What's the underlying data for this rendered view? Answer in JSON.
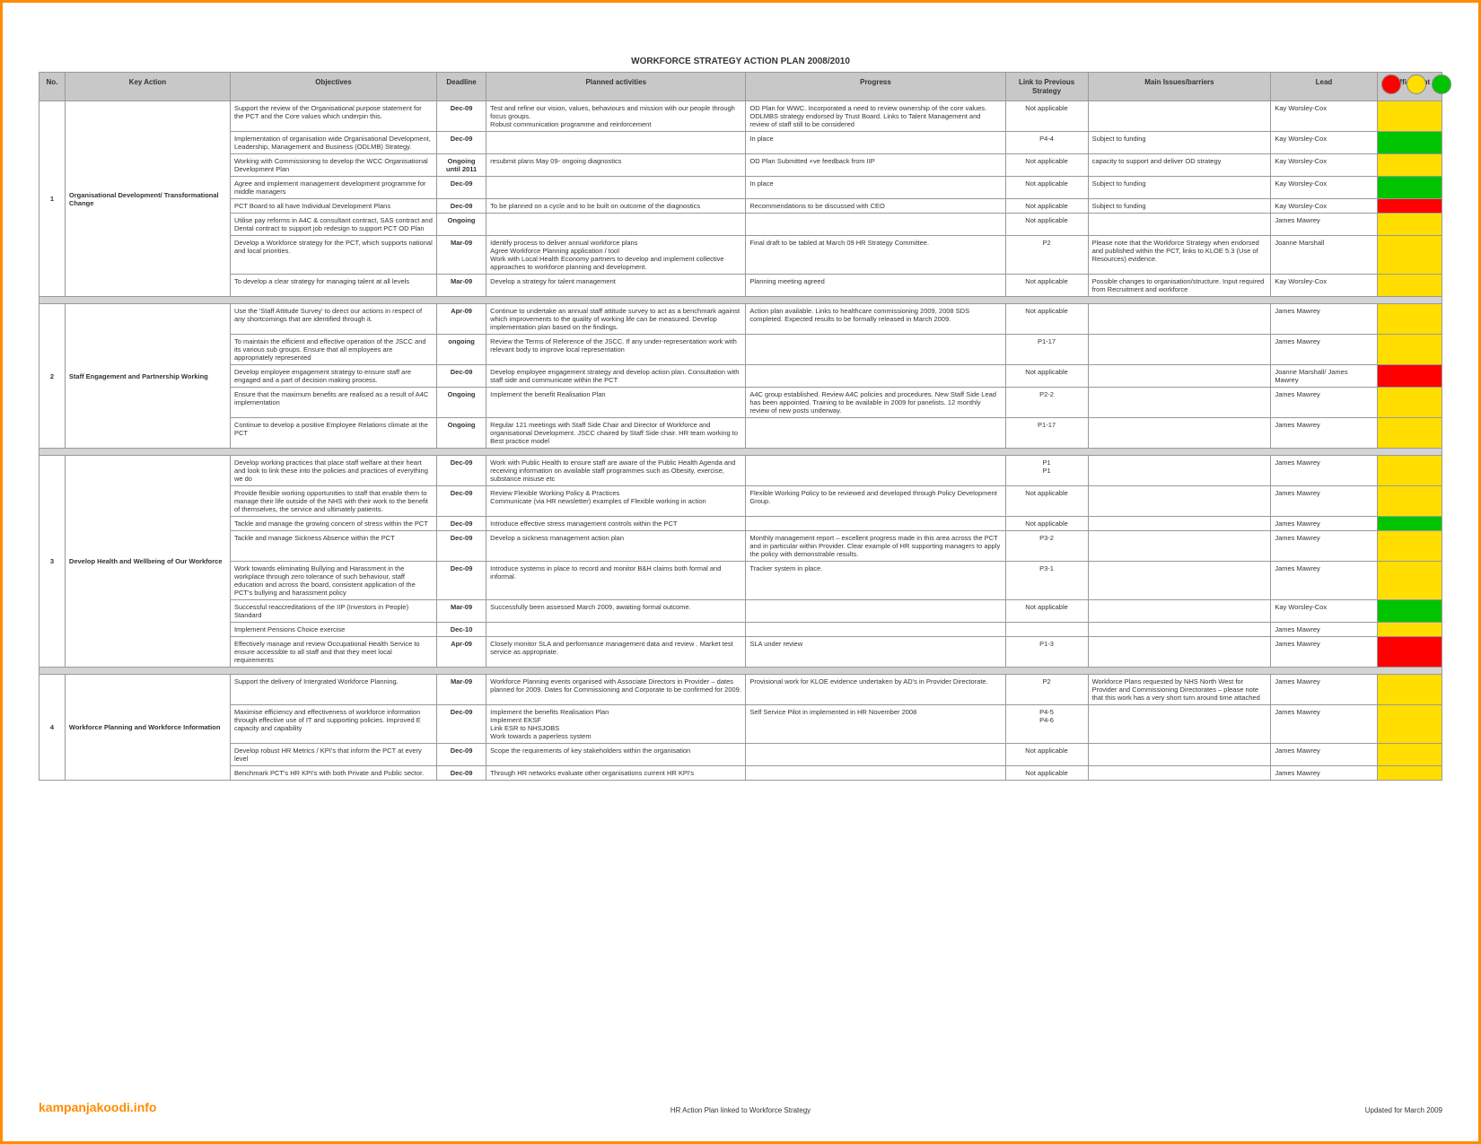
{
  "title": "WORKFORCE STRATEGY ACTION PLAN 2008/2010",
  "trafficDots": [
    "#ff0000",
    "#ffde00",
    "#00c400"
  ],
  "colors": {
    "red": "#ff0000",
    "amber": "#ffde00",
    "green": "#00c400",
    "none": "transparent"
  },
  "headers": [
    "No.",
    "Key Action",
    "Objectives",
    "Deadline",
    "Planned activities",
    "Progress",
    "Link to Previous Strategy",
    "Main Issues/barriers",
    "Lead",
    "Traffic Light"
  ],
  "groups": [
    {
      "no": "1",
      "keyAction": "Organisational Development/ Transformational Change",
      "rows": [
        {
          "obj": "Support the review of the Organisational purpose statement for the PCT and the Core values which underpin this.",
          "deadline": "Dec-09",
          "act": "Test and refine our vision, values, behaviours and mission with our people through focus groups.\nRobust communication programme and reinforcement",
          "prog": "OD Plan for WWC. Incorporated a need to review ownership of the core values.\nODLMBS strategy endorsed by Trust Board. Links to Talent Management and review of staff still to be considered",
          "link": "Not applicable",
          "issues": "",
          "lead": "Kay Worsley-Cox",
          "tl": "amber"
        },
        {
          "obj": "Implementation of organisation wide Organisational Development, Leadership, Management and Business (ODLMB) Strategy.",
          "deadline": "Dec-09",
          "act": "",
          "prog": "In place",
          "link": "P4-4",
          "issues": "Subject to funding",
          "lead": "Kay Worsley-Cox",
          "tl": "green"
        },
        {
          "obj": "Working with Commissioning to develop the WCC Organisational Development Plan",
          "deadline": "Ongoing until 2011",
          "act": "resubmit plans May 09- ongoing diagnostics",
          "prog": "OD Plan Submitted +ve feedback from IIP",
          "link": "Not applicable",
          "issues": "capacity to support and deliver OD strategy",
          "lead": "Kay Worsley-Cox",
          "tl": "amber"
        },
        {
          "obj": "Agree and implement management development programme for middle managers",
          "deadline": "Dec-09",
          "act": "",
          "prog": "In place",
          "link": "Not applicable",
          "issues": "Subject to funding",
          "lead": "Kay Worsley-Cox",
          "tl": "green"
        },
        {
          "obj": "PCT Board to all have Individual Development Plans",
          "deadline": "Dec-09",
          "act": "To be planned on a cycle and to be built on outcome of the diagnostics",
          "prog": "Recommendations to be discussed with CEO",
          "link": "Not applicable",
          "issues": "Subject to funding",
          "lead": "Kay Worsley-Cox",
          "tl": "red"
        },
        {
          "obj": "Utilise pay reforms in A4C & consultant contract, SAS contract and Dental contract to support job redesign to support PCT OD Plan",
          "deadline": "Ongoing",
          "act": "",
          "prog": "",
          "link": "Not applicable",
          "issues": "",
          "lead": "James Mawrey",
          "tl": "amber"
        },
        {
          "obj": "Develop a Workforce strategy for the PCT, which supports national and local priorities.",
          "deadline": "Mar-09",
          "act": "Identify process to deliver annual workforce plans\nAgree Workforce Planning application / tool\nWork with Local Health Economy partners to develop and implement collective approaches to workforce planning and development.",
          "prog": "Final draft to be tabled at March 09 HR Strategy Committee.",
          "link": "P2",
          "issues": "Please note that the Workforce Strategy when endorsed and published within the PCT, links to KLOE 5.3 (Use of Resources) evidence.",
          "lead": "Joanne Marshall",
          "tl": "amber"
        },
        {
          "obj": "To develop a clear strategy for managing talent at all levels",
          "deadline": "Mar-09",
          "act": "Develop a strategy for talent management",
          "prog": "Planning meeting agreed",
          "link": "Not applicable",
          "issues": "Possible changes to organisation/structure. Input required from Recruitment and workforce",
          "lead": "Kay Worsley-Cox",
          "tl": "amber"
        }
      ]
    },
    {
      "no": "2",
      "keyAction": "Staff Engagement and Partnership Working",
      "rows": [
        {
          "obj": "Use the 'Staff Attitude Survey' to direct our actions in respect of any shortcomings that are identified through it.",
          "deadline": "Apr-09",
          "act": "Continue to undertake an annual staff attitude survey to act as a benchmark against which improvements to the quality of working life can be measured. Develop implementation plan based on the findings.",
          "prog": "Action plan available. Links to healthcare commissioning 2009, 2008 SDS completed. Expected results to be formally released in March 2009.",
          "link": "Not applicable",
          "issues": "",
          "lead": "James Mawrey",
          "tl": "amber"
        },
        {
          "obj": "To maintain the efficient and effective operation of the JSCC and its various sub groups. Ensure that all employees are appropriately represented",
          "deadline": "ongoing",
          "act": "Review the Terms of Reference of the JSCC. If any under-representation work with relevant body to improve local representation",
          "prog": "",
          "link": "P1-17",
          "issues": "",
          "lead": "James Mawrey",
          "tl": "amber"
        },
        {
          "obj": "Develop employee engagement strategy to ensure staff are engaged and a part of decision making process.",
          "deadline": "Dec-09",
          "act": "Develop employee engagement strategy and develop action plan. Consultation with staff side and communicate within the PCT",
          "prog": "",
          "link": "Not applicable",
          "issues": "",
          "lead": "Joanne Marshall/ James Mawrey",
          "tl": "red"
        },
        {
          "obj": "Ensure that the maximum benefits are realised as a result of A4C implementation",
          "deadline": "Ongoing",
          "act": "Implement the benefit Realisation Plan",
          "prog": "A4C group established. Review A4C policies and procedures. New Staff Side Lead has been appointed. Training to be available in 2009 for panelists. 12 monthly review of new posts underway.",
          "link": "P2-2",
          "issues": "",
          "lead": "James Mawrey",
          "tl": "amber"
        },
        {
          "obj": "Continue to develop a positive Employee Relations climate at the PCT",
          "deadline": "Ongoing",
          "act": "Regular 121 meetings with Staff Side Chair and Director of Workforce and organisational Development. JSCC chaired by Staff Side chair. HR team working to Best practice model",
          "prog": "",
          "link": "P1-17",
          "issues": "",
          "lead": "James Mawrey",
          "tl": "amber"
        }
      ]
    },
    {
      "no": "3",
      "keyAction": "Develop Health and Wellbeing of Our Workforce",
      "rows": [
        {
          "obj": "Develop working practices that place staff welfare at their heart and look to link these into the policies and practices of everything we do",
          "deadline": "Dec-09",
          "act": "Work with Public Health to ensure staff are aware of the Public Health Agenda and receiving information on available staff programmes such as Obesity, exercise, substance misuse etc",
          "prog": "",
          "link": "P1\nP1",
          "issues": "",
          "lead": "James Mawrey",
          "tl": "amber"
        },
        {
          "obj": "Provide flexible working opportunities to staff that enable them to manage their life outside of the NHS with their work to the benefit of themselves, the service and ultimately patients.",
          "deadline": "Dec-09",
          "act": "Review Flexible Working Policy & Practices\nCommunicate (via HR newsletter) examples of Flexible working in action",
          "prog": "Flexible Working Policy to be reviewed and developed through Policy Development Group.",
          "link": "Not applicable",
          "issues": "",
          "lead": "James Mawrey",
          "tl": "amber"
        },
        {
          "obj": "Tackle and manage the growing concern of stress within the PCT",
          "deadline": "Dec-09",
          "act": "Introduce effective stress management controls within the PCT",
          "prog": "",
          "link": "Not applicable",
          "issues": "",
          "lead": "James Mawrey",
          "tl": "green"
        },
        {
          "obj": "Tackle and manage Sickness Absence within the PCT",
          "deadline": "Dec-09",
          "act": "Develop a sickness management action plan",
          "prog": "Monthly management report – excellent progress made in this area across the PCT and in particular within Provider. Clear example of HR supporting managers to apply the policy with demonstrable results.",
          "link": "P3-2",
          "issues": "",
          "lead": "James Mawrey",
          "tl": "amber"
        },
        {
          "obj": "Work towards eliminating Bullying and Harassment in the workplace through zero tolerance of such behaviour, staff education and across the board, consistent application of the PCT's bullying and harassment policy",
          "deadline": "Dec-09",
          "act": "Introduce systems in place to record and monitor B&H claims both formal and informal.",
          "prog": "Tracker system in place.",
          "link": "P3-1",
          "issues": "",
          "lead": "James Mawrey",
          "tl": "amber"
        },
        {
          "obj": "Successful reaccreditations of the IIP (Investors in People) Standard",
          "deadline": "Mar-09",
          "act": "Successfully been assessed March 2009, awaiting formal outcome.",
          "prog": "",
          "link": "Not applicable",
          "issues": "",
          "lead": "Kay Worsley-Cox",
          "tl": "green"
        },
        {
          "obj": "Implement Pensions Choice exercise",
          "deadline": "Dec-10",
          "act": "",
          "prog": "",
          "link": "",
          "issues": "",
          "lead": "James Mawrey",
          "tl": "amber"
        },
        {
          "obj": "Effectively manage and review Occupational Health Service to ensure accessible to all staff and that they meet local requirements",
          "deadline": "Apr-09",
          "act": "Closely monitor SLA and performance management data and review . Market test service as appropriate.",
          "prog": "SLA under review",
          "link": "P1-3",
          "issues": "",
          "lead": "James Mawrey",
          "tl": "red"
        }
      ]
    },
    {
      "no": "4",
      "keyAction": "Workforce Planning and Workforce Information",
      "rows": [
        {
          "obj": "Support the delivery of Intergrated Workforce Planning.",
          "deadline": "Mar-09",
          "act": "Workforce Planning events organised with Associate Directors in Provider – dates planned for 2009. Dates for Commissioning and Corporate to be confirmed for 2009.",
          "prog": "Provisional work for KLOE evidence undertaken by AD's in Provider Directorate.",
          "link": "P2",
          "issues": "Workforce Plans requested by NHS North West for Provider and Commissioning Directorates – please note that this work has a very short turn around time attached",
          "lead": "James Mawrey",
          "tl": "amber"
        },
        {
          "obj": "Maximise efficiency and effectiveness of workforce information through effective use of IT and supporting policies. Improved E capacity and capability",
          "deadline": "Dec-09",
          "act": "Implement the benefits Realisation Plan\nImplement EKSF\nLink ESR to NHSJOBS\nWork towards a paperless system",
          "prog": "Self Service Pilot in implemented in HR November 2008",
          "link": "P4-5\nP4-6",
          "issues": "",
          "lead": "James Mawrey",
          "tl": "amber"
        },
        {
          "obj": "Develop robust HR Metrics / KPI's that inform the PCT at every level",
          "deadline": "Dec-09",
          "act": "Scope the requirements of key stakeholders within the organisation",
          "prog": "",
          "link": "Not applicable",
          "issues": "",
          "lead": "James Mawrey",
          "tl": "amber"
        },
        {
          "obj": "Benchmark PCT's HR KPI's with both Private and Public sector.",
          "deadline": "Dec-09",
          "act": "Through HR networks evaluate other organisations current HR KPI's",
          "prog": "",
          "link": "Not applicable",
          "issues": "",
          "lead": "James Mawrey",
          "tl": "amber"
        }
      ]
    }
  ],
  "footer": {
    "left": "kampanjakoodi.info",
    "center": "HR Action Plan linked to Workforce Strategy",
    "right": "Updated for March 2009"
  }
}
